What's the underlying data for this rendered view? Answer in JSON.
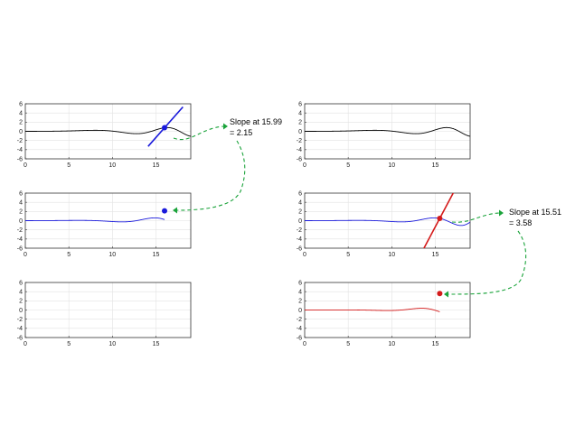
{
  "colors": {
    "black": "#000000",
    "blue": "#1a1adb",
    "red": "#d41a1a",
    "callout": "#1aa33a",
    "grid": "#e2e2e2"
  },
  "chart_data": [
    {
      "id": "left-top",
      "type": "line",
      "xlim": [
        0,
        19
      ],
      "ylim": [
        -6,
        6
      ],
      "xticks": [
        "0",
        "5",
        "10",
        "15"
      ],
      "yticks": [
        "6",
        "4",
        "2",
        "0",
        "-2",
        "-4",
        "-6"
      ],
      "grid": true,
      "series_color": "black",
      "curve": "f",
      "curve_xrange": [
        0,
        19
      ],
      "tangent": {
        "x0": 15.99,
        "slope": 2.15,
        "color": "blue",
        "x_from": 14.1,
        "x_to": 18.1
      },
      "point": {
        "x": 15.99,
        "color": "blue"
      }
    },
    {
      "id": "left-middle",
      "type": "line",
      "xlim": [
        0,
        19
      ],
      "ylim": [
        -6,
        6
      ],
      "xticks": [
        "0",
        "5",
        "10",
        "15"
      ],
      "yticks": [
        "6",
        "4",
        "2",
        "0",
        "-2",
        "-4",
        "-6"
      ],
      "grid": true,
      "series_color": "blue",
      "curve": "df",
      "curve_xrange": [
        0,
        15.99
      ],
      "point": {
        "x": 15.99,
        "y": 2.15,
        "color": "blue"
      }
    },
    {
      "id": "left-bottom",
      "type": "line",
      "xlim": [
        0,
        19
      ],
      "ylim": [
        -6,
        6
      ],
      "xticks": [
        "0",
        "5",
        "10",
        "15"
      ],
      "yticks": [
        "6",
        "4",
        "2",
        "0",
        "-2",
        "-4",
        "-6"
      ],
      "grid": true
    },
    {
      "id": "right-top",
      "type": "line",
      "xlim": [
        0,
        19
      ],
      "ylim": [
        -6,
        6
      ],
      "xticks": [
        "0",
        "5",
        "10",
        "15"
      ],
      "yticks": [
        "6",
        "4",
        "2",
        "0",
        "-2",
        "-4",
        "-6"
      ],
      "grid": true,
      "series_color": "black",
      "curve": "f",
      "curve_xrange": [
        0,
        19
      ]
    },
    {
      "id": "right-middle",
      "type": "line",
      "xlim": [
        0,
        19
      ],
      "ylim": [
        -6,
        6
      ],
      "xticks": [
        "0",
        "5",
        "10",
        "15"
      ],
      "yticks": [
        "6",
        "4",
        "2",
        "0",
        "-2",
        "-4",
        "-6"
      ],
      "grid": true,
      "series_color": "blue",
      "curve": "df",
      "curve_xrange": [
        0,
        19
      ],
      "tangent": {
        "x0": 15.51,
        "slope": 3.58,
        "color": "red",
        "x_from": 13.2,
        "x_to": 17.4
      },
      "point": {
        "x": 15.51,
        "color": "red"
      }
    },
    {
      "id": "right-bottom",
      "type": "line",
      "xlim": [
        0,
        19
      ],
      "ylim": [
        -6,
        6
      ],
      "xticks": [
        "0",
        "5",
        "10",
        "15"
      ],
      "yticks": [
        "6",
        "4",
        "2",
        "0",
        "-2",
        "-4",
        "-6"
      ],
      "grid": true,
      "series_color": "red",
      "curve": "d2f",
      "curve_xrange": [
        0,
        15.51
      ],
      "point": {
        "x": 15.51,
        "y": 3.58,
        "color": "red"
      }
    }
  ],
  "annotations": [
    {
      "id": "left",
      "line1": "Slope at 15.99",
      "line2": "= 2.15"
    },
    {
      "id": "right",
      "line1": "Slope at 15.51",
      "line2": "= 3.58"
    }
  ]
}
